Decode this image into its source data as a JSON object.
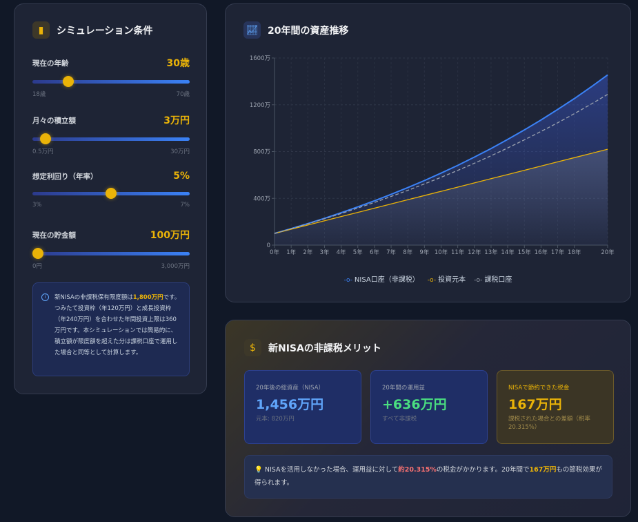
{
  "conditions": {
    "title": "シミュレーション条件",
    "icon": "bar-chart-icon",
    "params": [
      {
        "label": "現在の年齢",
        "value": "30歳",
        "min": "18歳",
        "max": "70歳",
        "fraction": 0.23
      },
      {
        "label": "月々の積立額",
        "value": "3万円",
        "min": "0.5万円",
        "max": "30万円",
        "fraction": 0.085
      },
      {
        "label": "想定利回り（年率）",
        "value": "5%",
        "min": "3%",
        "max": "7%",
        "fraction": 0.5
      },
      {
        "label": "現在の貯金額",
        "value": "100万円",
        "min": "0円",
        "max": "3,000万円",
        "fraction": 0.033
      }
    ],
    "info": {
      "pre": "新NISAの非課税保有限度額は",
      "highlight": "1,800万円",
      "post": "です。つみたて投資枠（年120万円）と成長投資枠（年240万円）を合わせた年間投資上限は360万円です。本シミュレーションでは簡易的に、積立額が限度額を超えた分は課税口座で運用した場合と同等として計算します。"
    }
  },
  "chart": {
    "title": "20年間の資産推移",
    "icon": "line-chart-icon"
  },
  "chart_data": {
    "type": "line",
    "x": [
      0,
      1,
      2,
      3,
      4,
      5,
      6,
      7,
      8,
      9,
      10,
      11,
      12,
      13,
      14,
      15,
      16,
      17,
      18,
      19,
      20
    ],
    "xtick_labels": [
      "0年",
      "1年",
      "2年",
      "3年",
      "4年",
      "5年",
      "6年",
      "7年",
      "8年",
      "9年",
      "10年",
      "11年",
      "12年",
      "13年",
      "14年",
      "15年",
      "16年",
      "17年",
      "18年",
      "20年"
    ],
    "xticks": [
      0,
      1,
      2,
      3,
      4,
      5,
      6,
      7,
      8,
      9,
      10,
      11,
      12,
      13,
      14,
      15,
      16,
      17,
      18,
      20
    ],
    "ylim": [
      0,
      1600
    ],
    "yticks": [
      0,
      400,
      800,
      1200,
      1600
    ],
    "ytick_labels": [
      "0",
      "400万",
      "800万",
      "1200万",
      "1600万"
    ],
    "legend": "bottom",
    "grid": true,
    "series": [
      {
        "name": "NISA口座（非課税）",
        "color": "#3b82f6",
        "style": "solid",
        "fill": true,
        "values": [
          100,
          141,
          184,
          229,
          277,
          327,
          379,
          434,
          492,
          552,
          616,
          682,
          753,
          826,
          904,
          985,
          1070,
          1160,
          1253,
          1352,
          1456
        ]
      },
      {
        "name": "投資元本",
        "color": "#eab308",
        "style": "solid",
        "fill": true,
        "values": [
          100,
          136,
          172,
          208,
          244,
          280,
          316,
          352,
          388,
          424,
          460,
          496,
          532,
          568,
          604,
          640,
          676,
          712,
          748,
          784,
          820
        ]
      },
      {
        "name": "課税口座",
        "color": "#9ca3af",
        "style": "dashed",
        "fill": false,
        "values": [
          100,
          140,
          182,
          225,
          270,
          317,
          365,
          416,
          468,
          523,
          580,
          639,
          700,
          764,
          831,
          900,
          972,
          1046,
          1124,
          1205,
          1289
        ]
      }
    ]
  },
  "merit": {
    "title": "新NISAの非課税メリット",
    "icon": "dollar-icon",
    "stats": [
      {
        "label": "20年後の総資産（NISA）",
        "value": "1,456万円",
        "sub": "元本: 820万円",
        "color": "#60a5fa"
      },
      {
        "label": "20年間の運用益",
        "value": "+636万円",
        "sub": "すべて非課税",
        "color": "#4ade80"
      },
      {
        "label": "NISAで節約できた税金",
        "value": "167万円",
        "sub": "課税された場合との差額（税率20.315%）",
        "color": "#eab308"
      }
    ],
    "note": {
      "icon": "💡",
      "p1": "NISAを活用しなかった場合、運用益に対して",
      "red": "約20.315%",
      "p2": "の税金がかかります。20年間で",
      "gold": "167万円",
      "p3": "もの節税効果が得られます。"
    }
  }
}
